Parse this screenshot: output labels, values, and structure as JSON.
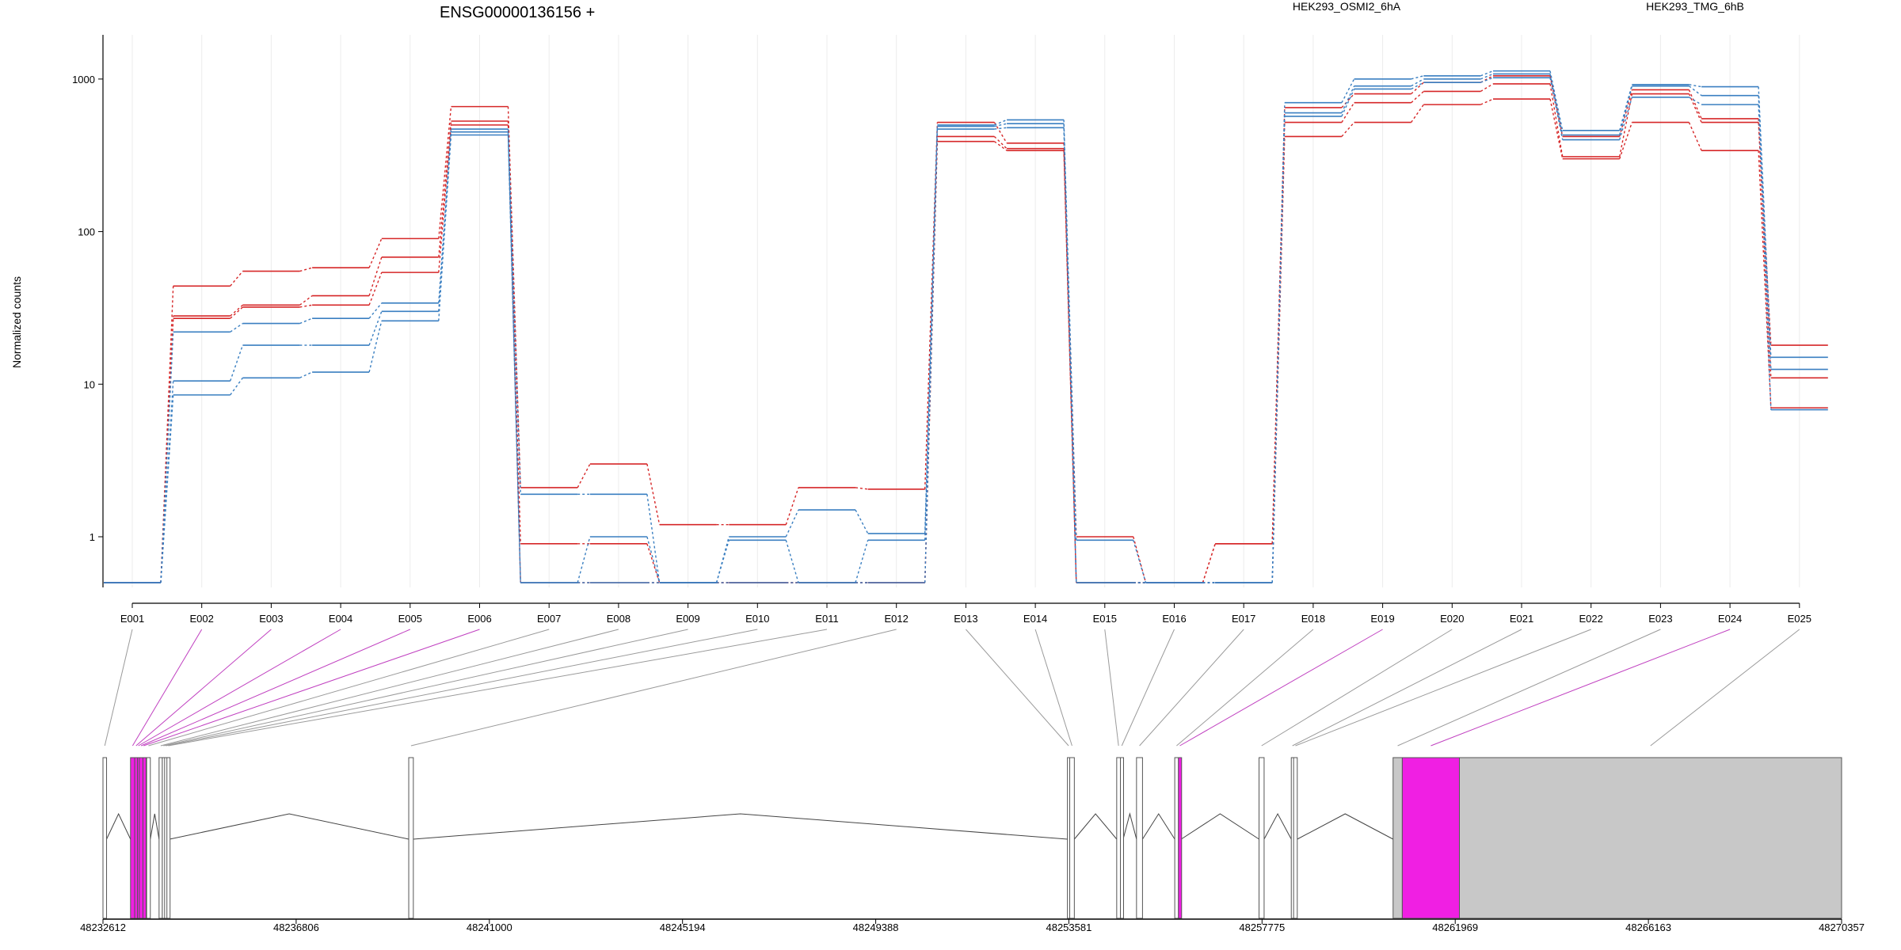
{
  "chart_data": {
    "type": "line",
    "title": "ENSG00000136156 +",
    "ylabel": "Normalized counts",
    "yscale": "log",
    "ylim": [
      0.5,
      1500
    ],
    "yticks": [
      {
        "value": 1,
        "label": "1"
      },
      {
        "value": 10,
        "label": "10"
      },
      {
        "value": 100,
        "label": "100"
      },
      {
        "value": 1000,
        "label": "1000"
      }
    ],
    "grid": "vertical gridlines at each exon",
    "legend": [
      {
        "name": "HEK293_OSMI2_6hA",
        "color": "#d62728"
      },
      {
        "name": "HEK293_TMG_6hB",
        "color": "#3a7fc1"
      }
    ],
    "categories": [
      "E001",
      "E002",
      "E003",
      "E004",
      "E005",
      "E006",
      "E007",
      "E008",
      "E009",
      "E010",
      "E011",
      "E012",
      "E013",
      "E014",
      "E015",
      "E016",
      "E017",
      "E018",
      "E019",
      "E020",
      "E021",
      "E022",
      "E023",
      "E024",
      "E025"
    ],
    "series": [
      {
        "group": "HEK293_OSMI2_6hA",
        "color": "#d62728",
        "values": [
          0.5,
          44,
          55,
          58,
          90,
          660,
          2.1,
          3.0,
          1.2,
          1.2,
          2.1,
          2.05,
          520,
          380,
          1.0,
          0.5,
          0.9,
          650,
          800,
          950,
          1050,
          420,
          850,
          550,
          18
        ]
      },
      {
        "group": "HEK293_OSMI2_6hA",
        "color": "#d62728",
        "values": [
          0.5,
          28,
          33,
          38,
          68,
          530,
          0.9,
          0.9,
          0.5,
          0.5,
          0.5,
          0.5,
          420,
          350,
          0.5,
          0.5,
          0.9,
          520,
          700,
          830,
          930,
          310,
          800,
          520,
          11
        ]
      },
      {
        "group": "HEK293_OSMI2_6hA",
        "color": "#d62728",
        "values": [
          0.5,
          27,
          32,
          33,
          54,
          500,
          0.5,
          0.5,
          0.5,
          0.5,
          0.5,
          0.5,
          390,
          340,
          0.5,
          0.5,
          0.5,
          420,
          520,
          680,
          740,
          300,
          520,
          340,
          7
        ]
      },
      {
        "group": "HEK293_TMG_6hB",
        "color": "#3a7fc1",
        "values": [
          0.5,
          22,
          25,
          27,
          34,
          470,
          1.9,
          1.9,
          0.5,
          1.0,
          1.5,
          1.05,
          500,
          540,
          0.95,
          0.5,
          0.5,
          700,
          1000,
          1050,
          1130,
          460,
          920,
          890,
          15
        ]
      },
      {
        "group": "HEK293_TMG_6hB",
        "color": "#3a7fc1",
        "values": [
          0.5,
          10.5,
          18,
          18,
          30,
          450,
          0.5,
          1.0,
          0.5,
          0.95,
          0.5,
          0.95,
          490,
          510,
          0.5,
          0.5,
          0.5,
          600,
          900,
          1000,
          1080,
          430,
          900,
          780,
          12.5
        ]
      },
      {
        "group": "HEK293_TMG_6hB",
        "color": "#3a7fc1",
        "values": [
          0.5,
          8.5,
          11,
          12,
          26,
          430,
          0.5,
          0.5,
          0.5,
          0.5,
          0.5,
          0.5,
          470,
          480,
          0.5,
          0.5,
          0.5,
          570,
          860,
          950,
          1020,
          400,
          760,
          680,
          6.8
        ]
      }
    ],
    "gene_model": {
      "genomic_range": [
        48232612,
        48270357
      ],
      "axis_ticks": [
        48232612,
        48236806,
        48241000,
        48245194,
        48249388,
        48253581,
        48257775,
        48261969,
        48266163,
        48270357
      ],
      "exons": [
        {
          "id": "E001",
          "start": 48232612,
          "end": 48232690,
          "color": "#ffffff",
          "highlight": false
        },
        {
          "id": "E002",
          "start": 48233210,
          "end": 48233300,
          "color": "#f01fe3",
          "highlight": true
        },
        {
          "id": "E003",
          "start": 48233300,
          "end": 48233360,
          "color": "#f01fe3",
          "highlight": true
        },
        {
          "id": "E004",
          "start": 48233360,
          "end": 48233400,
          "color": "#f01fe3",
          "highlight": true
        },
        {
          "id": "E005",
          "start": 48233400,
          "end": 48233480,
          "color": "#f01fe3",
          "highlight": true
        },
        {
          "id": "E006",
          "start": 48233480,
          "end": 48233510,
          "color": "#f01fe3",
          "highlight": true
        },
        {
          "id": "E007",
          "start": 48233560,
          "end": 48233640,
          "color": "#ffffff",
          "highlight": false
        },
        {
          "id": "E008",
          "start": 48233830,
          "end": 48233900,
          "color": "#ffffff",
          "highlight": false
        },
        {
          "id": "E009",
          "start": 48233900,
          "end": 48233950,
          "color": "#ffffff",
          "highlight": false
        },
        {
          "id": "E010",
          "start": 48233950,
          "end": 48234000,
          "color": "#ffffff",
          "highlight": false
        },
        {
          "id": "E011",
          "start": 48234000,
          "end": 48234060,
          "color": "#ffffff",
          "highlight": false
        },
        {
          "id": "E012",
          "start": 48239250,
          "end": 48239350,
          "color": "#ffffff",
          "highlight": false
        },
        {
          "id": "E013",
          "start": 48253550,
          "end": 48253600,
          "color": "#ffffff",
          "highlight": false
        },
        {
          "id": "E014",
          "start": 48253600,
          "end": 48253700,
          "color": "#ffffff",
          "highlight": false
        },
        {
          "id": "E015",
          "start": 48254620,
          "end": 48254700,
          "color": "#ffffff",
          "highlight": false
        },
        {
          "id": "E016",
          "start": 48254700,
          "end": 48254760,
          "color": "#ffffff",
          "highlight": false
        },
        {
          "id": "E017",
          "start": 48255050,
          "end": 48255180,
          "color": "#ffffff",
          "highlight": false
        },
        {
          "id": "E018",
          "start": 48255880,
          "end": 48255960,
          "color": "#ffffff",
          "highlight": false
        },
        {
          "id": "E019",
          "start": 48255960,
          "end": 48256020,
          "color": "#f01fe3",
          "highlight": true
        },
        {
          "id": "E020",
          "start": 48257710,
          "end": 48257820,
          "color": "#ffffff",
          "highlight": false
        },
        {
          "id": "E021",
          "start": 48258410,
          "end": 48258460,
          "color": "#ffffff",
          "highlight": false
        },
        {
          "id": "E022",
          "start": 48258460,
          "end": 48258540,
          "color": "#ffffff",
          "highlight": false
        },
        {
          "id": "E023",
          "start": 48260620,
          "end": 48260820,
          "color": "#c8c8c8",
          "highlight": false
        },
        {
          "id": "E024",
          "start": 48260820,
          "end": 48262060,
          "color": "#f01fe3",
          "highlight": true
        },
        {
          "id": "E025",
          "start": 48262060,
          "end": 48270357,
          "color": "#c8c8c8",
          "highlight": false
        }
      ]
    }
  }
}
